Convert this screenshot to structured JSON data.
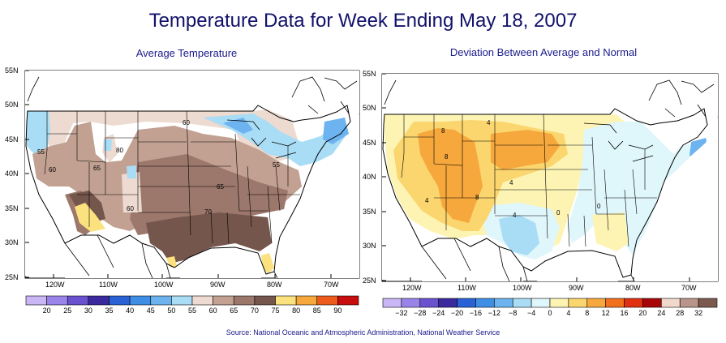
{
  "title": "Temperature Data for Week Ending May 18, 2007",
  "source": "Source:  National Oceanic and Atmospheric Administration, National Weather Service",
  "left_map": {
    "title": "Average Temperature",
    "lat_labels": [
      "55N",
      "50N",
      "45N",
      "40N",
      "35N",
      "30N",
      "25N"
    ],
    "lon_labels": [
      "120W",
      "110W",
      "100W",
      "90W",
      "80W",
      "70W"
    ],
    "contour_labels": [
      "60",
      "55",
      "80",
      "60",
      "65",
      "60",
      "65",
      "55",
      "70"
    ],
    "legend": {
      "labels": [
        "20",
        "25",
        "30",
        "35",
        "40",
        "45",
        "50",
        "55",
        "60",
        "65",
        "70",
        "75",
        "80",
        "85",
        "90"
      ],
      "colors": [
        "#c8b6f5",
        "#9a84ea",
        "#6a52cf",
        "#3a2a9e",
        "#2a62d6",
        "#3f8ee6",
        "#6cb3f0",
        "#a9dcf5",
        "#eddad0",
        "#c2a192",
        "#9c776c",
        "#74564c",
        "#fbe27e",
        "#f6a83c",
        "#ef5b1c",
        "#c70d0d"
      ]
    }
  },
  "right_map": {
    "title": "Deviation Between Average and Normal",
    "lat_labels": [
      "55N",
      "50N",
      "45N",
      "40N",
      "35N",
      "30N",
      "25N"
    ],
    "lon_labels": [
      "120W",
      "110W",
      "100W",
      "90W",
      "80W",
      "70W"
    ],
    "contour_labels": [
      "8",
      "4",
      "8",
      "4",
      "8",
      "4",
      "0",
      "0",
      "4"
    ],
    "legend": {
      "labels": [
        "−32",
        "−28",
        "−24",
        "−20",
        "−16",
        "−12",
        "−8",
        "−4",
        "0",
        "4",
        "8",
        "12",
        "16",
        "20",
        "24",
        "28",
        "32"
      ],
      "colors": [
        "#c8b6f5",
        "#9a84ea",
        "#6a52cf",
        "#3a2a9e",
        "#2a62d6",
        "#3f8ee6",
        "#6cb3f0",
        "#a9dcf5",
        "#dff6fb",
        "#fdf4b4",
        "#fbd56e",
        "#f6a83c",
        "#f2701c",
        "#e03010",
        "#a80606",
        "#f0d8cc",
        "#b8948a",
        "#7c5a4d"
      ]
    }
  }
}
